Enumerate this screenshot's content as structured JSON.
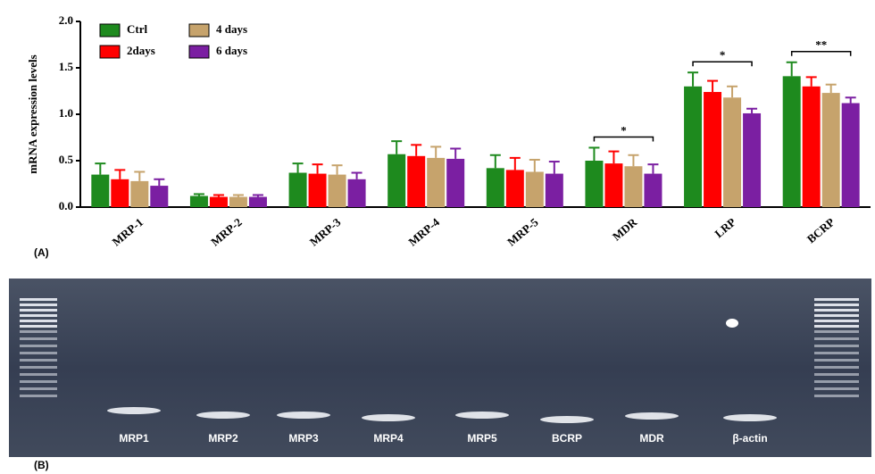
{
  "chart_data": {
    "type": "bar",
    "panel_label": "(A)",
    "y_label": "mRNA expression levels",
    "categories": [
      "MRP-1",
      "MRP-2",
      "MRP-3",
      "MRP-4",
      "MRP-5",
      "MDR",
      "LRP",
      "BCRP"
    ],
    "series": [
      {
        "name": "Ctrl",
        "color": "#1e8a1e",
        "values": [
          0.35,
          0.12,
          0.37,
          0.57,
          0.42,
          0.5,
          1.3,
          1.41
        ],
        "errors": [
          0.12,
          0.02,
          0.1,
          0.14,
          0.14,
          0.14,
          0.15,
          0.15
        ]
      },
      {
        "name": "2days",
        "color": "#ff0000",
        "values": [
          0.3,
          0.11,
          0.36,
          0.55,
          0.4,
          0.47,
          1.24,
          1.3
        ],
        "errors": [
          0.1,
          0.02,
          0.1,
          0.12,
          0.13,
          0.13,
          0.12,
          0.1
        ]
      },
      {
        "name": "4 days",
        "color": "#c6a36c",
        "values": [
          0.28,
          0.11,
          0.35,
          0.53,
          0.38,
          0.44,
          1.18,
          1.23
        ],
        "errors": [
          0.1,
          0.02,
          0.1,
          0.12,
          0.13,
          0.12,
          0.12,
          0.09
        ]
      },
      {
        "name": "6 days",
        "color": "#7b1fa2",
        "values": [
          0.23,
          0.11,
          0.3,
          0.52,
          0.36,
          0.36,
          1.01,
          1.12
        ],
        "errors": [
          0.07,
          0.02,
          0.07,
          0.11,
          0.13,
          0.1,
          0.05,
          0.06
        ]
      }
    ],
    "annotations": [
      {
        "category": "MDR",
        "text": "*"
      },
      {
        "category": "LRP",
        "text": "*"
      },
      {
        "category": "BCRP",
        "text": "**"
      }
    ],
    "ylim": [
      0,
      2.0
    ],
    "yticks": [
      {
        "value": 0,
        "label": "0.0"
      },
      0.5,
      {
        "value": 1,
        "label": "1.0"
      },
      1.5,
      {
        "value": 2,
        "label": "2.0"
      }
    ],
    "legend": "upper left"
  },
  "gel": {
    "panel_label": "(B)",
    "lanes": [
      "MRP1",
      "MRP2",
      "MRP3",
      "MRP4",
      "MRP5",
      "BCRP",
      "MDR",
      "β-actin"
    ]
  }
}
